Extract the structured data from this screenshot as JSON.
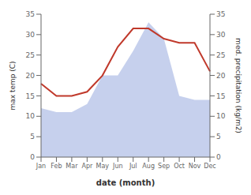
{
  "chart_data": {
    "type": "line",
    "xlabel": "date (month)",
    "ylabel": "max temp (C)",
    "y2label": "med. precipitation (kg/m2)",
    "categories": [
      "Jan",
      "Feb",
      "Mar",
      "Apr",
      "May",
      "Jun",
      "Jul",
      "Aug",
      "Sep",
      "Oct",
      "Nov",
      "Dec"
    ],
    "series": [
      {
        "type": "area",
        "axis": "y2",
        "color": "#b8c4e8",
        "values": [
          12,
          11,
          11,
          13,
          20,
          20,
          26,
          33,
          29,
          15,
          14,
          14
        ]
      },
      {
        "type": "line",
        "color": "#c0392b",
        "values": [
          18,
          15,
          15,
          16,
          20,
          27,
          31.5,
          31.5,
          29,
          28,
          28,
          21
        ]
      }
    ],
    "ylim": [
      0,
      35
    ],
    "yticks": [
      0,
      5,
      10,
      15,
      20,
      25,
      30,
      35
    ],
    "y2lim": [
      0,
      35
    ],
    "y2ticks": [
      0,
      5,
      10,
      15,
      20,
      25,
      30,
      35
    ],
    "grid": false
  }
}
